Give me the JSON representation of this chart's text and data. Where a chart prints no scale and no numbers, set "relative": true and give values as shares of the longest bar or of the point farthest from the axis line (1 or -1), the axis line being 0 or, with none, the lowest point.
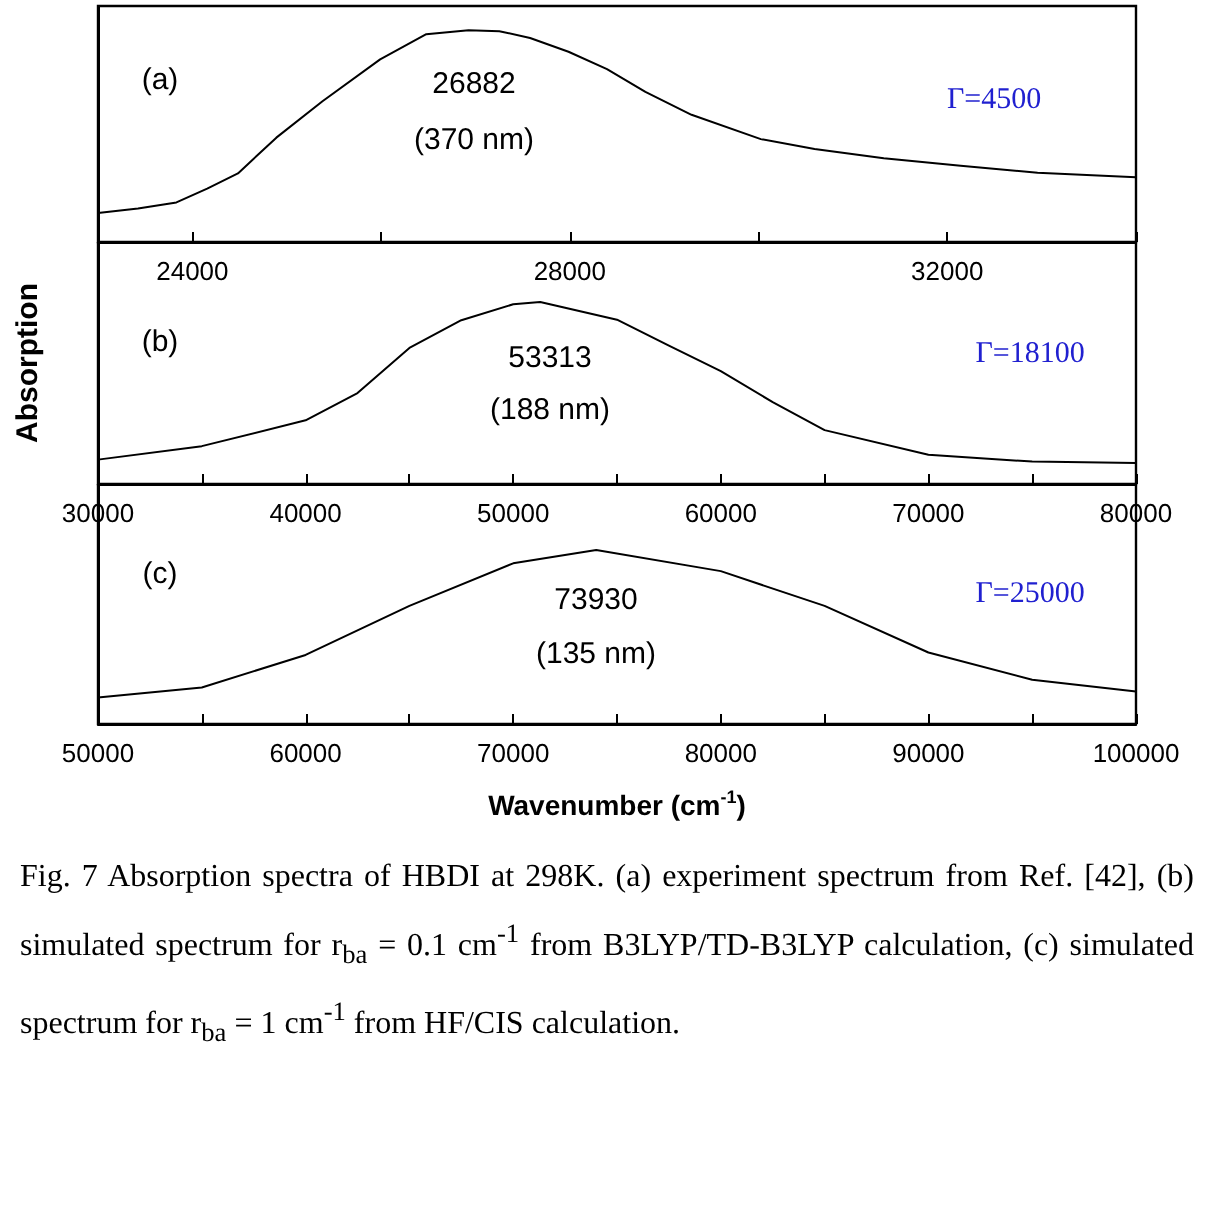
{
  "chart_data": [
    {
      "type": "line",
      "relative": true,
      "tick_labels": "x",
      "marker": "none",
      "line_style": "solid",
      "xlim": [
        23000,
        34000
      ],
      "xticks": [
        24000,
        {
          "value": 26000,
          "label": null
        },
        28000,
        {
          "value": 30000,
          "label": null
        },
        32000,
        {
          "value": 34000,
          "label": null
        }
      ],
      "x": [
        23000,
        23424,
        23831,
        24157,
        24483,
        24890,
        25379,
        25990,
        26479,
        26927,
        27253,
        27579,
        27986,
        28394,
        28801,
        29290,
        30024,
        30594,
        31327,
        32142,
        32957,
        34000
      ],
      "series": [
        {
          "color": "#000000",
          "values": [
            0.137,
            0.158,
            0.187,
            0.252,
            0.324,
            0.493,
            0.665,
            0.863,
            0.982,
            1.0,
            0.996,
            0.964,
            0.899,
            0.817,
            0.709,
            0.601,
            0.486,
            0.439,
            0.396,
            0.36,
            0.327,
            0.306
          ]
        }
      ],
      "annotations": [
        "(a)",
        "26882",
        "(370 nm)",
        "Γ=4500"
      ]
    },
    {
      "type": "line",
      "relative": true,
      "tick_labels": "x",
      "marker": "none",
      "line_style": "solid",
      "ylabel": "Absorption",
      "xlim": [
        30000,
        80000
      ],
      "xticks": [
        30000,
        {
          "value": 35000,
          "label": null
        },
        40000,
        {
          "value": 45000,
          "label": null
        },
        50000,
        {
          "value": 55000,
          "label": null
        },
        60000,
        {
          "value": 65000,
          "label": null
        },
        70000,
        {
          "value": 75000,
          "label": null
        },
        80000
      ],
      "x": [
        30000,
        35000,
        40000,
        42500,
        45000,
        47500,
        50000,
        51300,
        55000,
        57500,
        60000,
        62500,
        65000,
        70000,
        75000,
        80000
      ],
      "series": [
        {
          "color": "#000000",
          "values": [
            0.134,
            0.208,
            0.35,
            0.5,
            0.748,
            0.9,
            0.988,
            1.0,
            0.903,
            0.76,
            0.62,
            0.45,
            0.296,
            0.161,
            0.123,
            0.116
          ]
        }
      ],
      "annotations": [
        "(b)",
        "53313",
        "(188 nm)",
        "Γ=18100"
      ]
    },
    {
      "type": "line",
      "relative": true,
      "tick_labels": "x",
      "marker": "none",
      "line_style": "solid",
      "xlabel": "Wavenumber (cm$^{-1}$)",
      "xlim": [
        50000,
        100000
      ],
      "xticks": [
        50000,
        {
          "value": 55000,
          "label": null
        },
        60000,
        {
          "value": 65000,
          "label": null
        },
        70000,
        {
          "value": 75000,
          "label": null
        },
        80000,
        {
          "value": 85000,
          "label": null
        },
        90000,
        {
          "value": 95000,
          "label": null
        },
        100000
      ],
      "x": [
        50000,
        55000,
        60000,
        65000,
        70000,
        74000,
        80000,
        85000,
        90000,
        95000,
        100000
      ],
      "series": [
        {
          "color": "#000000",
          "values": [
            0.152,
            0.21,
            0.397,
            0.679,
            0.924,
            1.0,
            0.879,
            0.679,
            0.411,
            0.254,
            0.1875
          ]
        }
      ],
      "annotations": [
        "(c)",
        "73930",
        "(135 nm)",
        "Γ=25000",
        "Fig. 7  Absorption spectra of HBDI at 298K. (a) experiment spectrum from Ref. [42], (b) simulated spectrum for r$_{ba}$ = 0.1 cm$^{-1}$ from B3LYP/TD-B3LYP calculation, (c) simulated spectrum for r$_{ba}$ = 1 cm$^{-1}$ from HF/CIS calculation."
      ]
    }
  ]
}
